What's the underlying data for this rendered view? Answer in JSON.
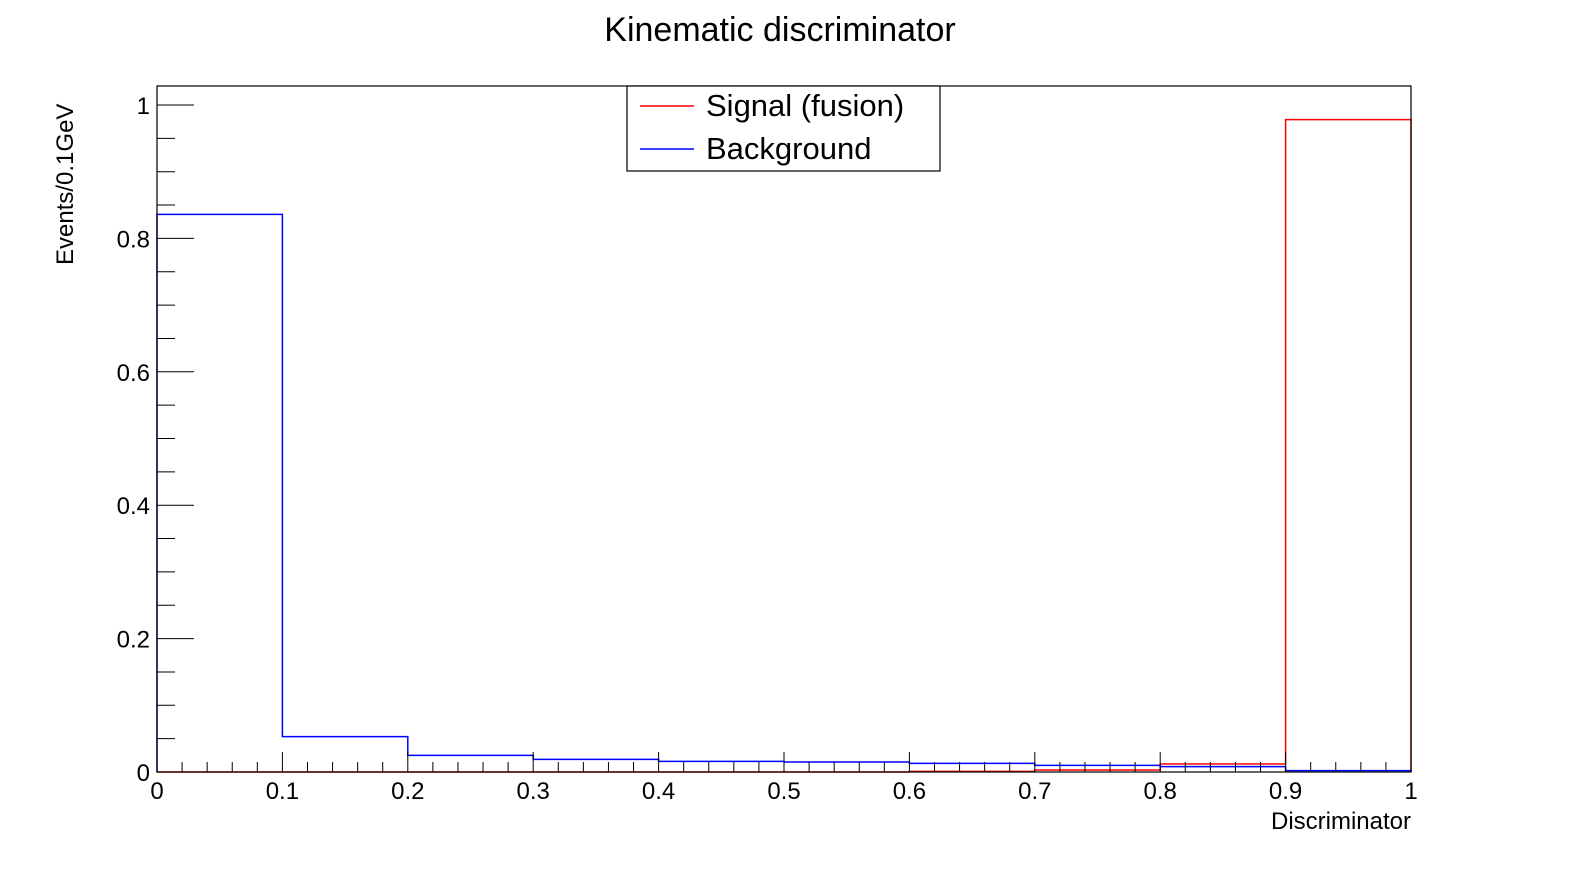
{
  "chart_data": {
    "type": "histogram",
    "title": "Kinematic discriminator",
    "xlabel": "Discriminator",
    "ylabel": "Events/0.1GeV",
    "xlim": [
      0,
      1
    ],
    "ylim": [
      0,
      1.0
    ],
    "bin_edges": [
      0,
      0.1,
      0.2,
      0.3,
      0.4,
      0.5,
      0.6,
      0.7,
      0.8,
      0.9,
      1.0
    ],
    "x_ticks": [
      "0",
      "0.1",
      "0.2",
      "0.3",
      "0.4",
      "0.5",
      "0.6",
      "0.7",
      "0.8",
      "0.9",
      "1"
    ],
    "y_ticks": [
      "0",
      "0.2",
      "0.4",
      "0.6",
      "0.8",
      "1"
    ],
    "legend_position": "top-center",
    "series": [
      {
        "name": "Signal (fusion)",
        "color": "#ff0000",
        "values": [
          0,
          0,
          0,
          0,
          0,
          0,
          0.001,
          0.003,
          0.012,
          0.978
        ]
      },
      {
        "name": "Background",
        "color": "#0000ff",
        "values": [
          0.836,
          0.053,
          0.025,
          0.019,
          0.016,
          0.015,
          0.013,
          0.01,
          0.008,
          0.002
        ]
      }
    ]
  }
}
